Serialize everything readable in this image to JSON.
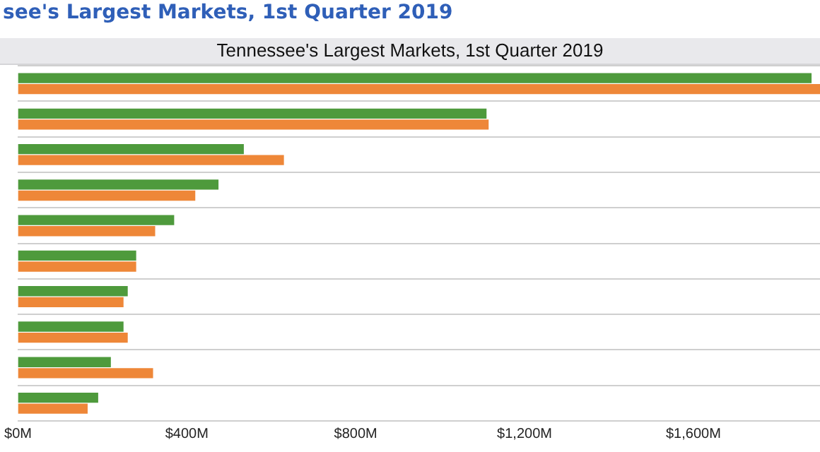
{
  "chart_data": {
    "type": "bar",
    "title": "see's Largest Markets, 1st Quarter 2019",
    "subtitle": "Tennessee's Largest Markets, 1st Quarter 2019",
    "orientation": "horizontal",
    "categories": [
      null,
      null,
      null,
      null,
      null,
      null,
      null,
      null,
      null,
      null
    ],
    "series": [
      {
        "color": "#4e9a3c",
        "values": [
          1880,
          1110,
          535,
          475,
          370,
          280,
          260,
          250,
          220,
          190
        ]
      },
      {
        "color": "#ee8738",
        "values": [
          1900,
          1115,
          630,
          420,
          325,
          280,
          250,
          260,
          320,
          165
        ]
      }
    ],
    "xlim": [
      0,
      1900
    ],
    "xticks": [
      {
        "value": 0,
        "label": "$0M"
      },
      {
        "value": 400,
        "label": "$400M"
      },
      {
        "value": 800,
        "label": "$800M"
      },
      {
        "value": 1200,
        "label": "$1,200M"
      },
      {
        "value": 1600,
        "label": "$1,600M"
      }
    ],
    "grid": "y",
    "legend": false
  }
}
